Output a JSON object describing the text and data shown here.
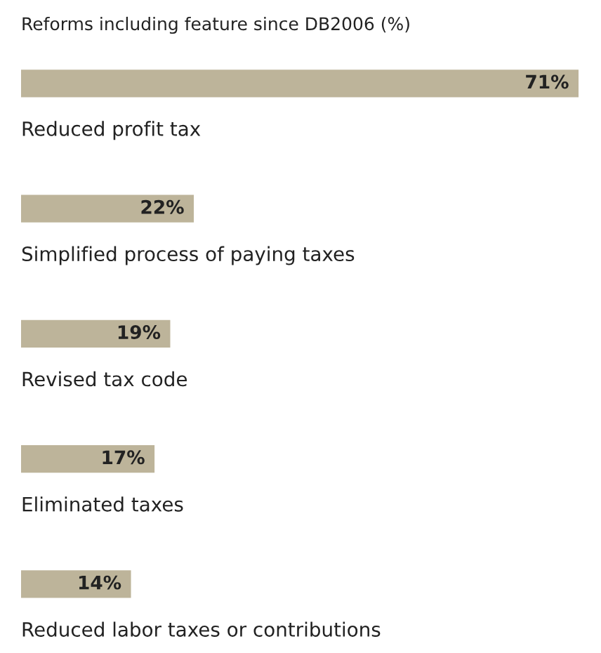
{
  "chart_data": {
    "type": "bar",
    "orientation": "horizontal",
    "title": "Reforms including feature since DB2006 (%)",
    "categories": [
      "Reduced profit tax",
      "Simplified process of paying taxes",
      "Revised tax code",
      "Eliminated taxes",
      "Reduced labor taxes or contributions"
    ],
    "values": [
      71,
      22,
      19,
      17,
      14
    ],
    "value_labels": [
      "71%",
      "22%",
      "19%",
      "17%",
      "14%"
    ],
    "color": "#bdb49a"
  }
}
